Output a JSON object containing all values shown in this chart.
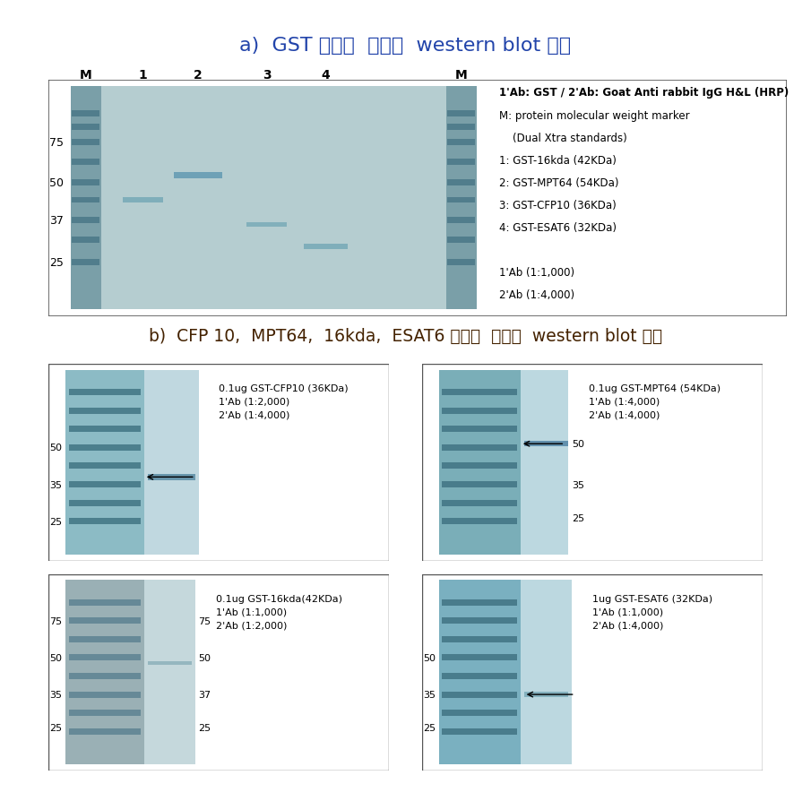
{
  "title_a": "a)  GST 항체를  이용한  western blot 결과",
  "title_b": "b)  CFP 10,  MPT64,  16kda,  ESAT6 항체를  이용한  western blot 결과",
  "title_color_a": "#2244aa",
  "title_color_b": "#442200",
  "gel_color_main": "#adc8cc",
  "gel_color_marker_a": "#7a9fa8",
  "gel_color_light": "#c5d8dc",
  "gel_color_b_left_dark": "#8fb5bc",
  "gel_color_b_right": "#b8d5dc",
  "gel_color_b_marker_dark": "#6b9ba5",
  "gel_color_b2_left": "#a0b0b5",
  "gel_color_b2_right": "#c0d5dc",
  "band_color": "#5580a0",
  "band_color2": "#6090a8",
  "marker_band_color": "#4a7888",
  "legend_a_line0": "1'Ab: GST / 2'Ab: Goat Anti rabbit IgG H&L (HRP)",
  "legend_a_rest": [
    "M: protein molecular weight marker",
    "    (Dual Xtra standards)",
    "1: GST-16kda (42KDa)",
    "2: GST-MPT64 (54KDa)",
    "3: GST-CFP10 (36KDa)",
    "4: GST-ESAT6 (32KDa)",
    "",
    "1'Ab (1:1,000)",
    "2'Ab (1:4,000)"
  ]
}
